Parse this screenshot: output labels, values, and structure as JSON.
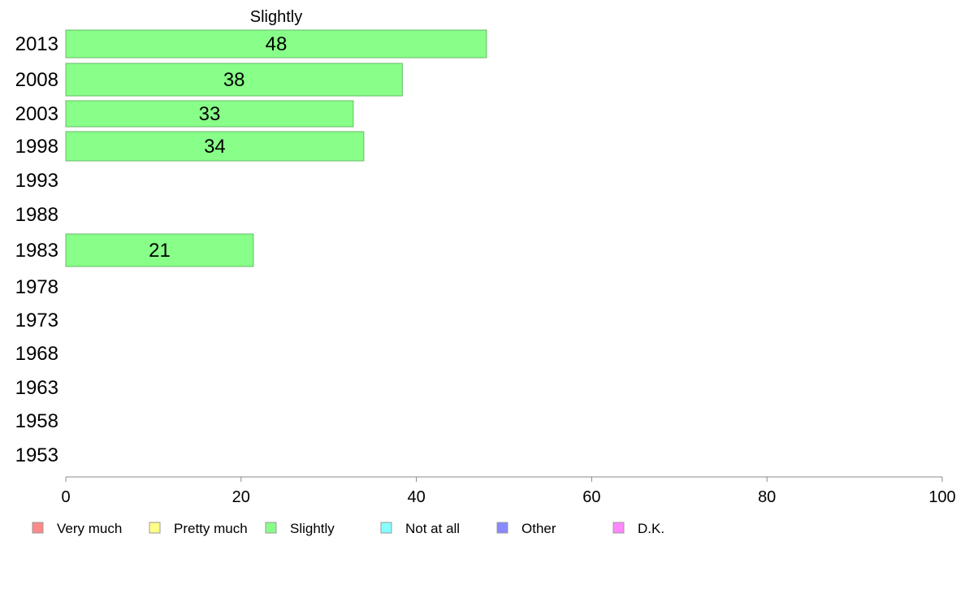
{
  "chart_data": {
    "type": "bar",
    "orientation": "horizontal",
    "title": "Slightly",
    "categories": [
      "2013",
      "2008",
      "2003",
      "1998",
      "1993",
      "1988",
      "1983",
      "1978",
      "1973",
      "1968",
      "1963",
      "1958",
      "1953"
    ],
    "series": [
      {
        "name": "Slightly",
        "color": "#88ff88",
        "values": [
          48,
          38.4,
          32.8,
          34,
          null,
          null,
          21.4,
          null,
          null,
          null,
          null,
          null,
          null
        ],
        "labels": [
          "48",
          "38",
          "33",
          "34",
          "",
          "",
          "21",
          "",
          "",
          "",
          "",
          "",
          ""
        ]
      }
    ],
    "xlim": [
      0,
      100
    ],
    "x_ticks": [
      "0",
      "20",
      "40",
      "60",
      "80",
      "100"
    ],
    "xlabel": "",
    "ylabel": "",
    "grid": false,
    "legend_position": "bottom-left",
    "legend": [
      {
        "label": "Very much",
        "color": "#ff8888"
      },
      {
        "label": "Pretty much",
        "color": "#ffff88"
      },
      {
        "label": "Slightly",
        "color": "#88ff88"
      },
      {
        "label": "Not at all",
        "color": "#88ffff"
      },
      {
        "label": "Other",
        "color": "#8888ff"
      },
      {
        "label": "D.K.",
        "color": "#ff88ff"
      }
    ]
  }
}
